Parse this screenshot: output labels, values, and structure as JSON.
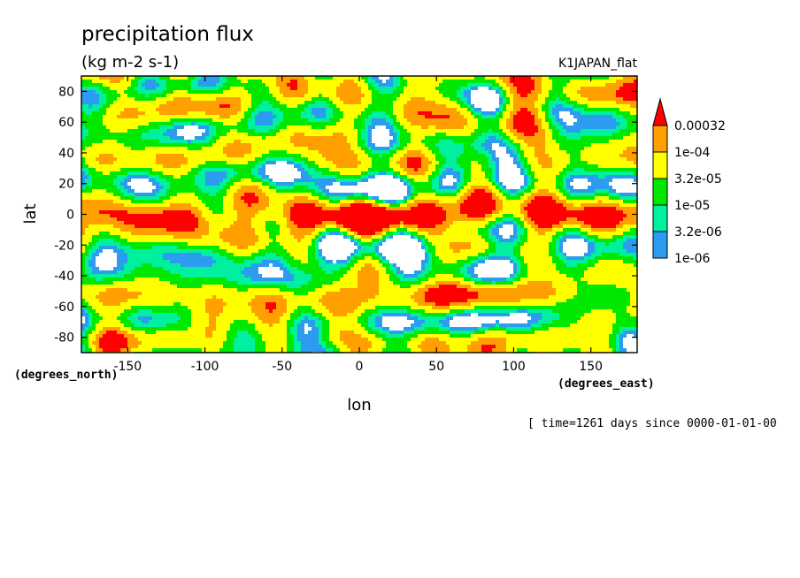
{
  "chart_data": {
    "type": "heatmap",
    "title": "precipitation flux",
    "units": "(kg m-2 s-1)",
    "experiment": "K1JAPAN_flat",
    "xlabel": "lon",
    "ylabel": "lat",
    "x_units": "(degrees_east)",
    "y_units": "(degrees_north)",
    "xlim": [
      -180,
      180
    ],
    "ylim": [
      -90,
      90
    ],
    "x_ticks": [
      -150,
      -100,
      -50,
      0,
      50,
      100,
      150
    ],
    "y_ticks": [
      80,
      60,
      40,
      20,
      0,
      -20,
      -40,
      -60,
      -80
    ],
    "time_note": "[ time=1261 days since 0000-01-01-00",
    "levels": [
      "1e-06",
      "3.2e-06",
      "1e-05",
      "3.2e-05",
      "1e-04",
      "0.00032"
    ],
    "level_values": [
      1e-06,
      3.2e-06,
      1e-05,
      3.2e-05,
      0.0001,
      0.00032
    ],
    "colors": [
      "#ffffff",
      "#2b9cf0",
      "#00f0a0",
      "#00e800",
      "#ffff00",
      "#ffa000",
      "#ff0000"
    ],
    "legend_position": "right"
  }
}
